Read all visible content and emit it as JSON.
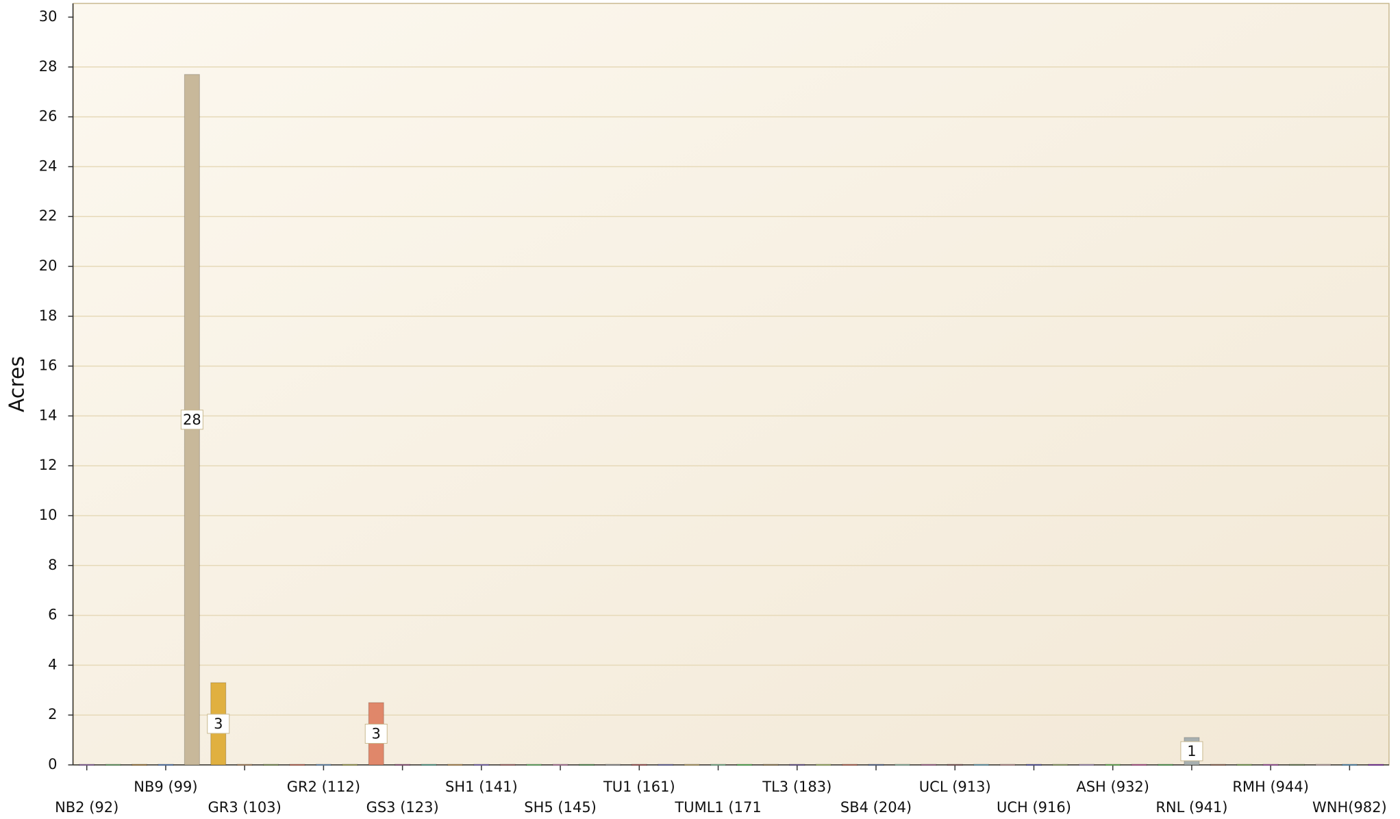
{
  "chart_data": {
    "type": "bar",
    "ylabel": "Acres",
    "categories": [
      "NB2 (92)",
      null,
      null,
      "NB9 (99)",
      null,
      null,
      "GR3 (103)",
      null,
      null,
      "GR2 (112)",
      null,
      null,
      "GS3 (123)",
      null,
      null,
      "SH1 (141)",
      null,
      null,
      "SH5 (145)",
      null,
      null,
      "TU1 (161)",
      null,
      null,
      "TUML1 (171",
      null,
      null,
      "TL3 (183)",
      null,
      null,
      "SB4 (204)",
      null,
      null,
      "UCL (913)",
      null,
      null,
      "UCH (916)",
      null,
      null,
      "ASH (932)",
      null,
      null,
      "RNL (941)",
      null,
      null,
      "RMH (944)",
      null,
      null,
      "WNH(982)",
      null
    ],
    "values": [
      0,
      0,
      0,
      0,
      27.7,
      3.3,
      0,
      0,
      0,
      0,
      0,
      2.5,
      0,
      0,
      0,
      0,
      0,
      0,
      0,
      0,
      0,
      0,
      0,
      0,
      0,
      0,
      0,
      0,
      0,
      0,
      0,
      0,
      0,
      0,
      0,
      0,
      0,
      0,
      0,
      0,
      0,
      0,
      1.1,
      0,
      0,
      0,
      0,
      0,
      0,
      0
    ],
    "value_labels": [
      null,
      null,
      null,
      null,
      "28",
      "3",
      null,
      null,
      null,
      null,
      null,
      "3",
      null,
      null,
      null,
      null,
      null,
      null,
      null,
      null,
      null,
      null,
      null,
      null,
      null,
      null,
      null,
      null,
      null,
      null,
      null,
      null,
      null,
      null,
      null,
      null,
      null,
      null,
      null,
      null,
      null,
      null,
      "1",
      null,
      null,
      null,
      null,
      null,
      null,
      null
    ],
    "colors": [
      "#8a6a9a",
      "#6a9a6a",
      "#9a7a4a",
      "#5a7aaa",
      "#c8b89a",
      "#e0b040",
      "#a08060",
      "#7a8a5a",
      "#b06a5a",
      "#6a8aaa",
      "#9a9a5a",
      "#e0876a",
      "#8a5a7a",
      "#5a9a8a",
      "#aa8a5a",
      "#7a6aaa",
      "#9a6a6a",
      "#6aaa6a",
      "#aa7a9a",
      "#5a8a5a",
      "#8a8a8a",
      "#9a5a5a",
      "#6a6a9a",
      "#aa9a6a",
      "#7aaa8a",
      "#5aaa5a",
      "#8a7a5a",
      "#6a5a8a",
      "#9aaa6a",
      "#aa6a5a",
      "#5a6a8a",
      "#8aaa9a",
      "#9a6a8a",
      "#7a5a5a",
      "#6a9aaa",
      "#aa8a8a",
      "#5a5a9a",
      "#8a9a6a",
      "#9a8aaa",
      "#6aaa5a",
      "#aa5a8a",
      "#5a9a5a",
      "#a8b0b0",
      "#8a6a5a",
      "#7a9a5a",
      "#9a5a9a",
      "#6a7a5a",
      "#aa9a9a",
      "#5a8aaa",
      "#7a3a9a"
    ],
    "ylim": [
      0,
      30
    ],
    "yticks": [
      0,
      2,
      4,
      6,
      8,
      10,
      12,
      14,
      16,
      18,
      20,
      22,
      24,
      26,
      28,
      30
    ],
    "grid": true
  }
}
